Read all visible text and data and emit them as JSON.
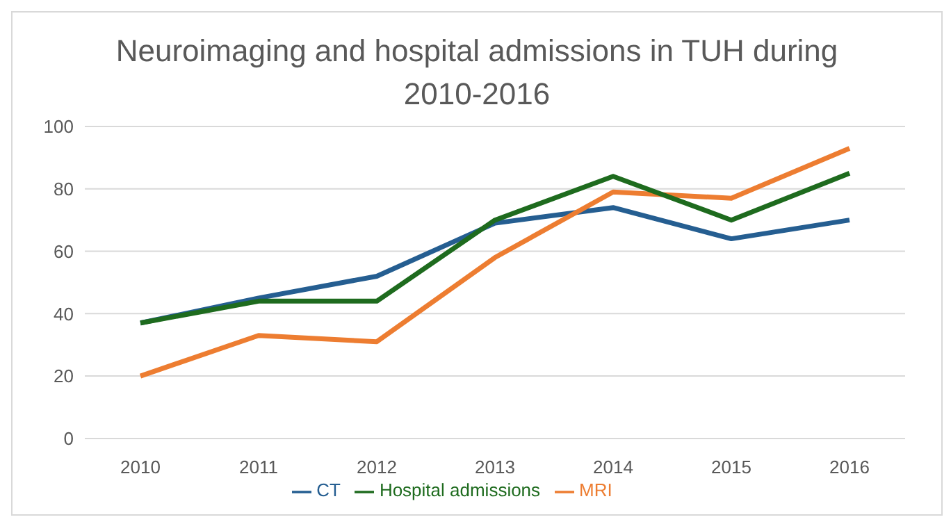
{
  "chart_data": {
    "type": "line",
    "title": "Neuroimaging and hospital admissions in TUH during 2010-2016",
    "categories": [
      "2010",
      "2011",
      "2012",
      "2013",
      "2014",
      "2015",
      "2016"
    ],
    "series": [
      {
        "name": "CT",
        "color": "#255e91",
        "values": [
          37,
          45,
          52,
          69,
          74,
          64,
          70
        ]
      },
      {
        "name": "MRI",
        "color": "#ed7d31",
        "values": [
          20,
          33,
          31,
          58,
          79,
          77,
          93
        ]
      },
      {
        "name": "Hospital admissions",
        "color": "#1e6b1e",
        "values": [
          37,
          44,
          44,
          70,
          84,
          70,
          85
        ]
      }
    ],
    "ylim": [
      0,
      100
    ],
    "yticks": [
      0,
      20,
      40,
      60,
      80,
      100
    ],
    "grid": "y",
    "legend": "bottom",
    "marker": "none",
    "line_style": "solid"
  }
}
